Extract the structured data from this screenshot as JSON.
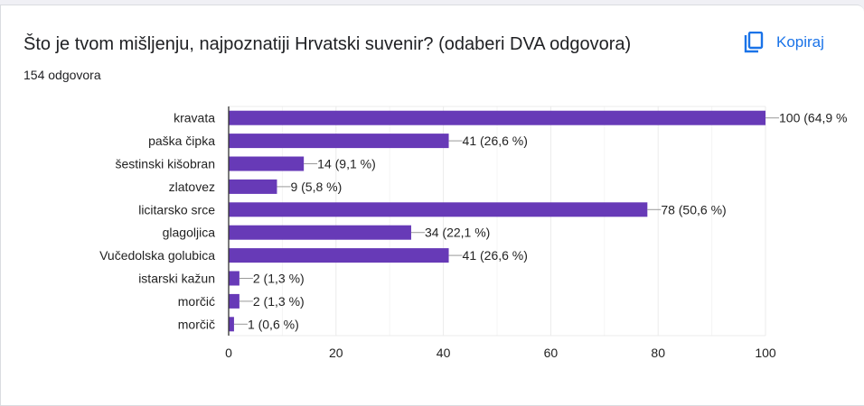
{
  "header": {
    "title": "Što je tvom mišljenju, najpoznatiji Hrvatski suvenir? (odaberi DVA odgovora)",
    "response_count": "154 odgovora",
    "copy_label": "Kopiraj",
    "copy_icon": "copy-icon"
  },
  "chart_data": {
    "type": "bar",
    "orientation": "horizontal",
    "categories": [
      "kravata",
      "paška čipka",
      "šestinski kišobran",
      "zlatovez",
      "licitarsko srce",
      "glagoljica",
      "Vučedolska golubica",
      "istarski kažun",
      "morčić",
      "morčič"
    ],
    "values": [
      100,
      41,
      14,
      9,
      78,
      34,
      41,
      2,
      2,
      1
    ],
    "labels": [
      "100 (64,9 %",
      "41 (26,6 %)",
      "14 (9,1 %)",
      "9 (5,8 %)",
      "78 (50,6 %)",
      "34 (22,1 %)",
      "41 (26,6 %)",
      "2 (1,3 %)",
      "2 (1,3 %)",
      "1 (0,6 %)"
    ],
    "xlim": [
      0,
      100
    ],
    "xticks": [
      "0",
      "20",
      "40",
      "60",
      "80",
      "100"
    ],
    "grid": true,
    "bar_color": "#673ab7"
  }
}
